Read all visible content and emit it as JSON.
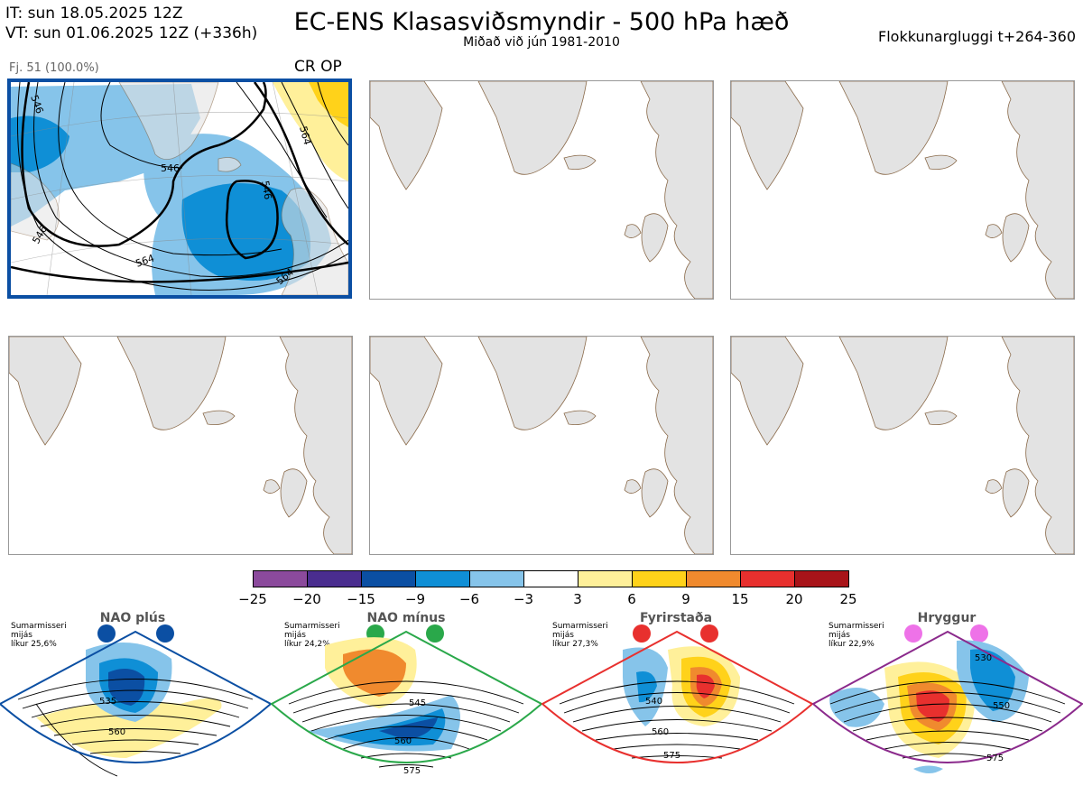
{
  "header": {
    "it_line": "IT: sun 18.05.2025 12Z",
    "vt_line": "VT: sun 01.06.2025 12Z  (+336h)",
    "title": "EC-ENS Klasasviðsmyndir - 500 hPa hæð",
    "subtitle": "Miðað við jún 1981-2010",
    "window": "Flokkunargluggi t+264-360"
  },
  "cluster1": {
    "label": "Fj. 51 (100.0%)",
    "tag": "CR OP",
    "border_color": "#0b4fa3",
    "contour_labels": [
      "546",
      "546",
      "546",
      "546",
      "564",
      "564",
      "564"
    ]
  },
  "colorbar": {
    "colors": [
      "#8b4a9c",
      "#4a2d8f",
      "#0b4fa3",
      "#0f8fd6",
      "#86c4ea",
      "#ffffff",
      "#fff09a",
      "#ffd21a",
      "#f08a2e",
      "#e8302e",
      "#a81419"
    ],
    "ticks": [
      "−25",
      "−20",
      "−15",
      "−9",
      "−6",
      "−3",
      "3",
      "6",
      "9",
      "15",
      "20",
      "25"
    ]
  },
  "regimes": [
    {
      "title": "NAO plús",
      "note": [
        "Sumarmisseri",
        "mijás",
        "líkur 25,6%"
      ],
      "color": "#0b4fa3",
      "labels": [
        "535",
        "560"
      ]
    },
    {
      "title": "NAO mínus",
      "note": [
        "Sumarmisseri",
        "mijás",
        "líkur 24,2%"
      ],
      "color": "#2aa84a",
      "labels": [
        "545",
        "560",
        "575"
      ]
    },
    {
      "title": "Fyrirstaða",
      "note": [
        "Sumarmisseri",
        "mijás",
        "líkur 27,3%"
      ],
      "color": "#e8302e",
      "labels": [
        "540",
        "560",
        "575"
      ]
    },
    {
      "title": "Hryggur",
      "note": [
        "Sumarmisseri",
        "mijás",
        "líkur 22,9%"
      ],
      "color": "#ee72e8",
      "labels": [
        "530",
        "550",
        "575"
      ]
    }
  ],
  "colors": {
    "land": "#e3e3e3",
    "coast": "#8a6a4a",
    "regime_frame_1": "#0b4fa3",
    "regime_frame_2": "#2aa84a",
    "regime_frame_3": "#e8302e",
    "regime_frame_4": "#8b2a8c"
  }
}
